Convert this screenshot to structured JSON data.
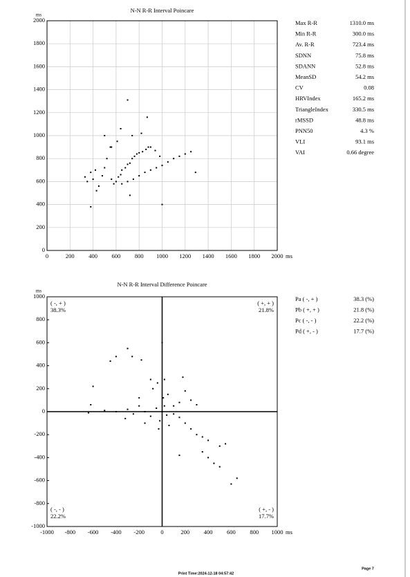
{
  "chart_data": [
    {
      "type": "scatter",
      "title": "N-N R-R Interval Poincare",
      "xlabel_unit": "ms",
      "ylabel": "ms",
      "color": "#000000",
      "grid": true,
      "xlim": [
        0,
        2000
      ],
      "ylim": [
        0,
        2000
      ],
      "xticks": [
        0,
        200,
        400,
        600,
        800,
        1000,
        1200,
        1400,
        1600,
        1800,
        2000
      ],
      "yticks": [
        0,
        200,
        400,
        600,
        800,
        1000,
        1200,
        1400,
        1600,
        1800,
        2000
      ],
      "x": [
        330,
        350,
        380,
        400,
        420,
        450,
        480,
        500,
        520,
        550,
        560,
        580,
        600,
        620,
        640,
        650,
        680,
        700,
        720,
        740,
        760,
        780,
        800,
        830,
        860,
        880,
        900,
        650,
        700,
        750,
        800,
        850,
        900,
        950,
        1000,
        1050,
        1100,
        1150,
        1200,
        1250,
        1290,
        700,
        870,
        640,
        500,
        740,
        820,
        430,
        380,
        1000,
        720,
        560,
        610,
        940,
        980
      ],
      "values": [
        640,
        600,
        680,
        620,
        700,
        560,
        650,
        720,
        800,
        900,
        620,
        580,
        600,
        640,
        660,
        700,
        720,
        750,
        760,
        800,
        820,
        840,
        850,
        860,
        880,
        900,
        900,
        580,
        600,
        620,
        650,
        680,
        700,
        720,
        740,
        770,
        800,
        820,
        840,
        860,
        680,
        1310,
        1160,
        1060,
        1000,
        1000,
        1020,
        520,
        380,
        400,
        480,
        900,
        950,
        870,
        820
      ]
    },
    {
      "type": "scatter",
      "title": "N-N R-R Interval Difference Poincare",
      "xlabel_unit": "ms",
      "ylabel": "ms",
      "color": "#000000",
      "grid": false,
      "zero_axes": true,
      "xlim": [
        -1000,
        1000
      ],
      "ylim": [
        -1000,
        1000
      ],
      "xticks": [
        -1000,
        -800,
        -600,
        -400,
        -200,
        0,
        200,
        400,
        600,
        800,
        1000
      ],
      "yticks": [
        -1000,
        -800,
        -600,
        -400,
        -200,
        0,
        200,
        400,
        600,
        800,
        1000
      ],
      "x": [
        0,
        -300,
        -400,
        -450,
        -600,
        -620,
        -640,
        -400,
        -300,
        -250,
        -200,
        -150,
        -100,
        -50,
        0,
        20,
        40,
        -20,
        10,
        -80,
        -100,
        -40,
        20,
        50,
        100,
        150,
        200,
        250,
        300,
        350,
        400,
        500,
        550,
        600,
        650,
        400,
        450,
        500,
        350,
        300,
        250,
        200,
        180,
        -180,
        -260,
        -150,
        -320,
        100,
        150,
        -30,
        60,
        150,
        -500,
        -200
      ],
      "values": [
        600,
        550,
        480,
        440,
        220,
        60,
        -10,
        0,
        20,
        -20,
        50,
        0,
        -40,
        30,
        0,
        50,
        -30,
        -80,
        120,
        200,
        280,
        250,
        280,
        150,
        50,
        -50,
        -100,
        -150,
        -200,
        -220,
        -250,
        -300,
        -280,
        -630,
        -580,
        -400,
        -450,
        -480,
        -350,
        60,
        100,
        180,
        300,
        450,
        480,
        -100,
        -60,
        -20,
        80,
        -150,
        -120,
        -380,
        10,
        120
      ],
      "quadrant_labels": [
        {
          "sign": "( -, + )",
          "pct": "38.3%"
        },
        {
          "sign": "( +, + )",
          "pct": "21.8%"
        },
        {
          "sign": "( -, - )",
          "pct": "22.2%"
        },
        {
          "sign": "( +, - )",
          "pct": "17.7%"
        }
      ]
    }
  ],
  "stats1": [
    [
      "Max R-R",
      "1310.0 ms"
    ],
    [
      "Min R-R",
      "300.0 ms"
    ],
    [
      "Av. R-R",
      "723.4 ms"
    ],
    [
      "SDNN",
      "75.8 ms"
    ],
    [
      "SDANN",
      "52.8 ms"
    ],
    [
      "MeanSD",
      "54.2 ms"
    ],
    [
      "CV",
      "0.08"
    ],
    [
      "HRVIndex",
      "165.2 ms"
    ],
    [
      "TriangleIndex",
      "330.5 ms"
    ],
    [
      "rMSSD",
      "48.8 ms"
    ],
    [
      "PNN50",
      "4.3 %"
    ],
    [
      "VLI",
      "93.1 ms"
    ],
    [
      "VAI",
      "0.66 degree"
    ]
  ],
  "stats2": [
    [
      "Pa ( -, + )",
      "38.3 (%)"
    ],
    [
      "Pb ( +, + )",
      "21.8 (%)"
    ],
    [
      "Pc ( -, - )",
      "22.2 (%)"
    ],
    [
      "Pd ( +, - )",
      "17.7 (%)"
    ]
  ],
  "footer": {
    "print_time": "Print Time:2024-12-18 04:57:42",
    "page": "Page 7"
  }
}
